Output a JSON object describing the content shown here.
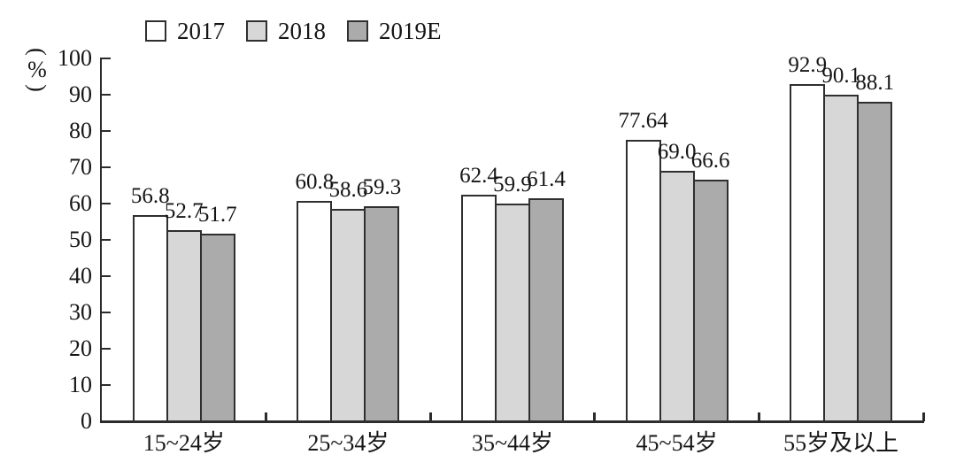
{
  "chart_data": {
    "type": "bar",
    "title": "",
    "ylabel_parts": {
      "open": "(",
      "symbol": "%",
      "close": ")"
    },
    "categories": [
      "15~24岁",
      "25~34岁",
      "35~44岁",
      "45~54岁",
      "55岁及以上"
    ],
    "series": [
      {
        "name": "2017",
        "color": "#ffffff",
        "values": [
          56.8,
          60.8,
          62.4,
          77.64,
          92.9
        ],
        "value_labels": [
          "56.8",
          "60.8",
          "62.4",
          "77.64",
          "92.9"
        ]
      },
      {
        "name": "2018",
        "color": "#d7d7d7",
        "values": [
          52.7,
          58.6,
          59.9,
          69.0,
          90.1
        ],
        "value_labels": [
          "52.7",
          "58.6",
          "59.9",
          "69.0",
          "90.1"
        ]
      },
      {
        "name": "2019E",
        "color": "#ababab",
        "values": [
          51.7,
          59.3,
          61.4,
          66.6,
          88.1
        ],
        "value_labels": [
          "51.7",
          "59.3",
          "61.4",
          "66.6",
          "88.1"
        ]
      }
    ],
    "ylim": [
      0,
      100
    ],
    "yticks": [
      0,
      10,
      20,
      30,
      40,
      50,
      60,
      70,
      80,
      90,
      100
    ],
    "grid": false,
    "legend_position": "top",
    "axis_color": "#2b2b2b",
    "text_color": "#161616",
    "bar_border_color": "#2f2f2f"
  }
}
